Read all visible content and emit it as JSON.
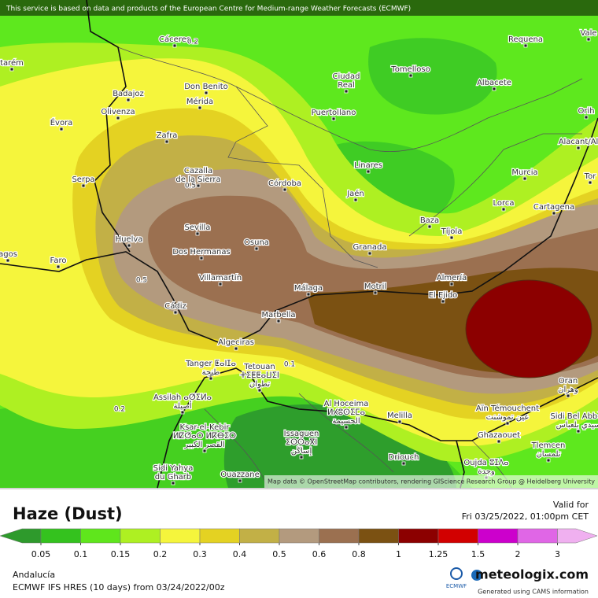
{
  "header": {
    "notice": "This service is based on data and products of the European Centre for Medium-range Weather Forecasts (ECMWF)"
  },
  "map": {
    "places": [
      [
        "Cáceres"
      ],
      [
        "Requena"
      ],
      [
        "Vale"
      ],
      [
        "tarém"
      ],
      [
        "Tomelloso"
      ],
      [
        "Ciudad",
        "Real"
      ],
      [
        "Badajoz"
      ],
      [
        "Don Benito"
      ],
      [
        "Albacete"
      ],
      [
        "Mérida"
      ],
      [
        "Olivenza"
      ],
      [
        "Puertollano"
      ],
      [
        "Évora"
      ],
      [
        "Orih"
      ],
      [
        "Zafra"
      ],
      [
        "Alacant/Al"
      ],
      [
        "Linares"
      ],
      [
        "Murcia"
      ],
      [
        "Serpa"
      ],
      [
        "Cazalla",
        "de la Sierra"
      ],
      [
        "Córdoba"
      ],
      [
        "Tor"
      ],
      [
        "Jaén"
      ],
      [
        "Lorca"
      ],
      [
        "Cartagena"
      ],
      [
        "Baza"
      ],
      [
        "Sevilla"
      ],
      [
        "Tíjola"
      ],
      [
        "Huelva"
      ],
      [
        "Osuna"
      ],
      [
        "agos"
      ],
      [
        "Faro"
      ],
      [
        "Dos Hermanas"
      ],
      [
        "Granada"
      ],
      [
        "Almería"
      ],
      [
        "Villamartín"
      ],
      [
        "Málaga"
      ],
      [
        "Motril"
      ],
      [
        "El Ejido"
      ],
      [
        "Cádiz"
      ],
      [
        "Marbella"
      ],
      [
        "Algeciras"
      ],
      [
        "Tanger ⵟⴰⵏⵊⴰ",
        "طنجة"
      ],
      [
        "Tetouan",
        "ⵜⵉⵟⵟⴰⵡⵉⵏ",
        "تطوان"
      ],
      [
        "Oran",
        "وهران"
      ],
      [
        "Assilah ⴰⵚⵉⵍⴰ",
        "أصيلة"
      ],
      [
        "Al Hoceima",
        "ⵍⵃⵓⵙⵉⵎⴰ",
        "الحسيمة"
      ],
      [
        "Aïn Témouchent",
        "عين تموشنت"
      ],
      [
        "Sidi Bel Abbès",
        "سيدي بلعباس"
      ],
      [
        "Melilla"
      ],
      [
        "Ksar-el-Kebir",
        "ⵍⵇⵚⴰⵔ ⵍⴽⴱⵉⵔ",
        "القصر الكبير"
      ],
      [
        "Issaguen",
        "ⵉⵙⵙⴰⴳⵏ",
        "إساڭن"
      ],
      [
        "Ghazaouet"
      ],
      [
        "Tlemcen",
        "تلمسان"
      ],
      [
        "Driouch"
      ],
      [
        "Oujda ⵓⵊⴷⴰ",
        "وجدة"
      ],
      [
        "Sidi Yahya",
        "du Gharb"
      ],
      [
        "Ouazzane"
      ]
    ],
    "contour_labels": [
      "0.2",
      "0.5",
      "0.5",
      "0.1",
      "0.2"
    ],
    "attribution": "Map data © OpenStreetMap contributors, rendering GIScience Research Group @ Heidelberg University"
  },
  "legend": {
    "title": "Haze (Dust)",
    "ticks": [
      0.05,
      0.1,
      0.15,
      0.2,
      0.3,
      0.4,
      0.5,
      0.6,
      0.8,
      1,
      1.25,
      1.5,
      2,
      3
    ],
    "colors": [
      "#2e9a2c",
      "#34c21e",
      "#5fe61c",
      "#aef022",
      "#f5f53c",
      "#e4d222",
      "#c2b046",
      "#b39a7e",
      "#9b7050",
      "#7b5112",
      "#8c0000",
      "#d20000",
      "#cc00cc",
      "#e066e6",
      "#f0b0f0"
    ]
  },
  "valid": {
    "label": "Valid for",
    "time": "Fri 03/25/2022, 01:00pm CET"
  },
  "footer": {
    "region": "Andalucía",
    "model": "ECMWF IFS HRES (10 days) from 03/24/2022/00z",
    "provider": "ECMWF",
    "brand": "meteologix.com",
    "credit": "Generated using CAMS information"
  }
}
